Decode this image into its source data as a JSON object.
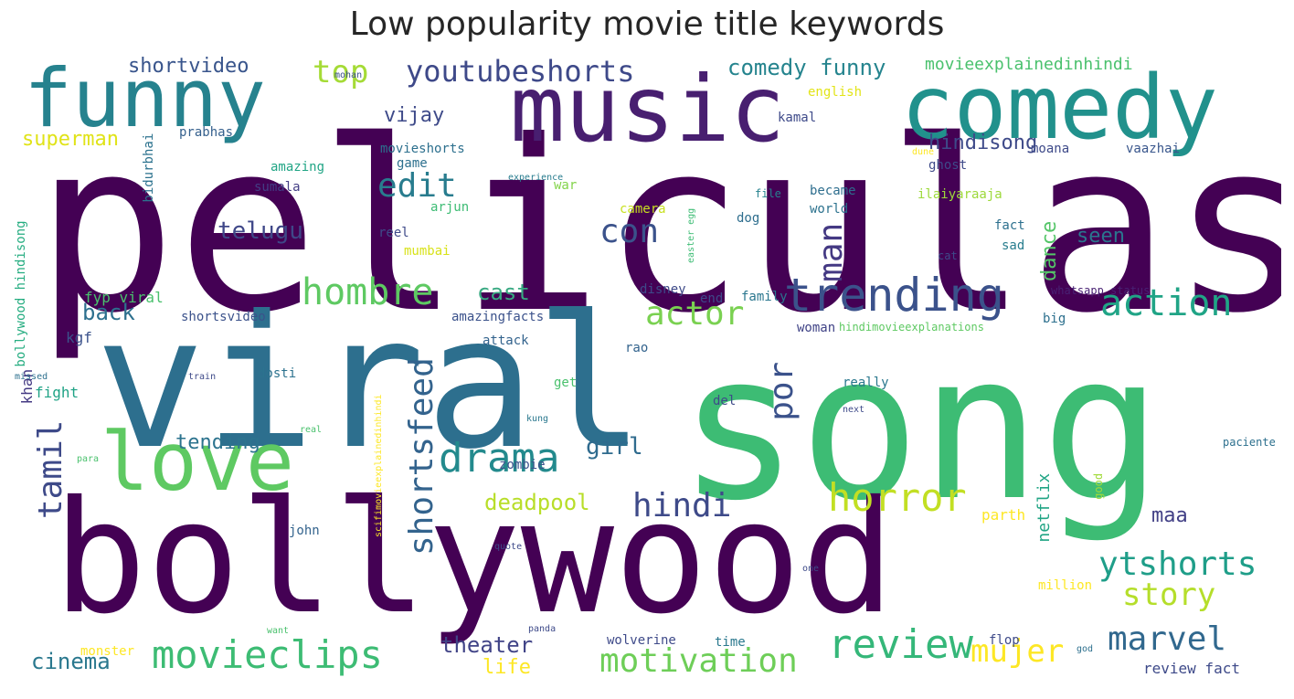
{
  "chart_data": {
    "type": "wordcloud",
    "title": "Low popularity movie title keywords",
    "words": [
      {
        "text": "peliculas",
        "color": "#440154",
        "rotate": false
      },
      {
        "text": "song",
        "color": "#3dbc74",
        "rotate": false
      },
      {
        "text": "viral",
        "color": "#2d6f8e",
        "rotate": false
      },
      {
        "text": "bollywood",
        "color": "#440154",
        "rotate": false
      },
      {
        "text": "music",
        "color": "#481f70",
        "rotate": false
      },
      {
        "text": "comedy",
        "color": "#21918c",
        "rotate": false
      },
      {
        "text": "funny",
        "color": "#26828e",
        "rotate": false
      },
      {
        "text": "love",
        "color": "#5ec962",
        "rotate": false
      },
      {
        "text": "trending",
        "color": "#3b528b",
        "rotate": false
      },
      {
        "text": "hombre",
        "color": "#5ec962",
        "rotate": false
      },
      {
        "text": "action",
        "color": "#20a486",
        "rotate": false
      },
      {
        "text": "drama",
        "color": "#238a8d",
        "rotate": false
      },
      {
        "text": "review",
        "color": "#35b779",
        "rotate": false
      },
      {
        "text": "movieclips",
        "color": "#3dbc74",
        "rotate": false
      },
      {
        "text": "horror",
        "color": "#c2df23",
        "rotate": false
      },
      {
        "text": "shortsfeed",
        "color": "#33638d",
        "rotate": true
      },
      {
        "text": "tamil",
        "color": "#3e4a89",
        "rotate": true
      },
      {
        "text": "marvel",
        "color": "#31688e",
        "rotate": false
      },
      {
        "text": "ytshorts",
        "color": "#1f9e89",
        "rotate": false
      },
      {
        "text": "motivation",
        "color": "#6ece58",
        "rotate": false
      },
      {
        "text": "actor",
        "color": "#7ad151",
        "rotate": false
      },
      {
        "text": "hindi",
        "color": "#3e4a89",
        "rotate": false
      },
      {
        "text": "youtubeshorts",
        "color": "#3e4989",
        "rotate": false
      },
      {
        "text": "top",
        "color": "#a5db36",
        "rotate": false
      },
      {
        "text": "story",
        "color": "#b5de2b",
        "rotate": false
      },
      {
        "text": "mujer",
        "color": "#fde725",
        "rotate": false
      },
      {
        "text": "edit",
        "color": "#287c8e",
        "rotate": false
      },
      {
        "text": "con",
        "color": "#3b528b",
        "rotate": false
      },
      {
        "text": "man",
        "color": "#443983",
        "rotate": true
      },
      {
        "text": "por",
        "color": "#3b528b",
        "rotate": true
      },
      {
        "text": "telugu",
        "color": "#3f4788",
        "rotate": false
      },
      {
        "text": "comedy funny",
        "color": "#25848e",
        "rotate": false
      },
      {
        "text": "cinema",
        "color": "#2a788e",
        "rotate": false
      },
      {
        "text": "theater",
        "color": "#414487",
        "rotate": false
      },
      {
        "text": "cast",
        "color": "#38a982",
        "rotate": false
      },
      {
        "text": "back",
        "color": "#2d708e",
        "rotate": false
      },
      {
        "text": "deadpool",
        "color": "#b8de29",
        "rotate": false
      },
      {
        "text": "girl",
        "color": "#2f6b8e",
        "rotate": false
      },
      {
        "text": "superman",
        "color": "#e0e318",
        "rotate": false
      },
      {
        "text": "tending",
        "color": "#2c738e",
        "rotate": false
      },
      {
        "text": "hindisong",
        "color": "#3e4a89",
        "rotate": false
      },
      {
        "text": "vijay",
        "color": "#3e4a89",
        "rotate": false
      },
      {
        "text": "seen",
        "color": "#2a768e",
        "rotate": false
      },
      {
        "text": "shortvideo",
        "color": "#39558c",
        "rotate": false
      },
      {
        "text": "dance",
        "color": "#54c568",
        "rotate": true
      },
      {
        "text": "life",
        "color": "#fde725",
        "rotate": false
      },
      {
        "text": "maa",
        "color": "#424086",
        "rotate": false
      },
      {
        "text": "movieexplainedinhindi",
        "color": "#4ac16d",
        "rotate": false
      },
      {
        "text": "netflix",
        "color": "#21a585",
        "rotate": true
      },
      {
        "text": "bollywood hindisong",
        "color": "#26ad81",
        "rotate": true
      },
      {
        "text": "fyp viral",
        "color": "#4ac16d",
        "rotate": false
      },
      {
        "text": "kgf",
        "color": "#3b528b",
        "rotate": false
      },
      {
        "text": "khan",
        "color": "#443a83",
        "rotate": true
      },
      {
        "text": "fight",
        "color": "#20a386",
        "rotate": false
      },
      {
        "text": "prabhas",
        "color": "#35608d",
        "rotate": false
      },
      {
        "text": "bidurbhai",
        "color": "#2c728e",
        "rotate": true
      },
      {
        "text": "sumala",
        "color": "#433e85",
        "rotate": false
      },
      {
        "text": "amazing",
        "color": "#21a585",
        "rotate": false
      },
      {
        "text": "movieshorts",
        "color": "#2d708e",
        "rotate": false
      },
      {
        "text": "game",
        "color": "#2d708e",
        "rotate": false
      },
      {
        "text": "war",
        "color": "#84d44b",
        "rotate": false
      },
      {
        "text": "arjun",
        "color": "#3dbc74",
        "rotate": false
      },
      {
        "text": "reel",
        "color": "#3e4a89",
        "rotate": false
      },
      {
        "text": "mumbai",
        "color": "#d8e219",
        "rotate": false
      },
      {
        "text": "camera",
        "color": "#c8e020",
        "rotate": false
      },
      {
        "text": "dog",
        "color": "#2e6e8e",
        "rotate": false
      },
      {
        "text": "became",
        "color": "#2e6e8e",
        "rotate": false
      },
      {
        "text": "world",
        "color": "#2c728e",
        "rotate": false
      },
      {
        "text": "ilaiyaraaja",
        "color": "#9dd93b",
        "rotate": false
      },
      {
        "text": "ghost",
        "color": "#3e4a89",
        "rotate": false
      },
      {
        "text": "fact",
        "color": "#2d708e",
        "rotate": false
      },
      {
        "text": "sad",
        "color": "#287d8e",
        "rotate": false
      },
      {
        "text": "moana",
        "color": "#3e4a89",
        "rotate": false
      },
      {
        "text": "vaazhai",
        "color": "#39568c",
        "rotate": false
      },
      {
        "text": "kamal",
        "color": "#3e4a89",
        "rotate": false
      },
      {
        "text": "english",
        "color": "#e2e418",
        "rotate": false
      },
      {
        "text": "mohan",
        "color": "#3b528b",
        "rotate": false
      },
      {
        "text": "dune",
        "color": "#fde725",
        "rotate": false
      },
      {
        "text": "experience",
        "color": "#287c8e",
        "rotate": false
      },
      {
        "text": "easter egg",
        "color": "#3dbc74",
        "rotate": true
      },
      {
        "text": "file",
        "color": "#26828e",
        "rotate": false
      },
      {
        "text": "cat",
        "color": "#3e4a89",
        "rotate": false
      },
      {
        "text": "disney",
        "color": "#3e4a89",
        "rotate": false
      },
      {
        "text": "end",
        "color": "#3e4a89",
        "rotate": false
      },
      {
        "text": "family",
        "color": "#2a768e",
        "rotate": false
      },
      {
        "text": "whatsapp status",
        "color": "#482173",
        "rotate": false
      },
      {
        "text": "woman",
        "color": "#414487",
        "rotate": false
      },
      {
        "text": "hindimovieexplanations",
        "color": "#5ec962",
        "rotate": false
      },
      {
        "text": "big",
        "color": "#2d708e",
        "rotate": false
      },
      {
        "text": "amazingfacts",
        "color": "#3b528b",
        "rotate": false
      },
      {
        "text": "shortsvideo",
        "color": "#3b528b",
        "rotate": false
      },
      {
        "text": "attack",
        "color": "#33638d",
        "rotate": false
      },
      {
        "text": "rao",
        "color": "#33638d",
        "rotate": false
      },
      {
        "text": "dosti",
        "color": "#2c728e",
        "rotate": false
      },
      {
        "text": "scifimovieexplainedinhindi",
        "color": "#fde725",
        "rotate": true
      },
      {
        "text": "get",
        "color": "#4ac16d",
        "rotate": false
      },
      {
        "text": "del",
        "color": "#3e4a89",
        "rotate": false
      },
      {
        "text": "really",
        "color": "#2a788e",
        "rotate": false
      },
      {
        "text": "next",
        "color": "#3e4a89",
        "rotate": false
      },
      {
        "text": "kung",
        "color": "#2a788e",
        "rotate": false
      },
      {
        "text": "real",
        "color": "#4ac16d",
        "rotate": false
      },
      {
        "text": "train",
        "color": "#3e4a89",
        "rotate": false
      },
      {
        "text": "missed",
        "color": "#2d708e",
        "rotate": false
      },
      {
        "text": "para",
        "color": "#4ac16d",
        "rotate": false
      },
      {
        "text": "zombie",
        "color": "#3b528b",
        "rotate": false
      },
      {
        "text": "good",
        "color": "#a0da39",
        "rotate": true
      },
      {
        "text": "paciente",
        "color": "#2d708e",
        "rotate": false
      },
      {
        "text": "parth",
        "color": "#fde725",
        "rotate": false
      },
      {
        "text": "john",
        "color": "#33638d",
        "rotate": false
      },
      {
        "text": "quote",
        "color": "#3e4a89",
        "rotate": false
      },
      {
        "text": "one",
        "color": "#3e4a89",
        "rotate": false
      },
      {
        "text": "million",
        "color": "#fde725",
        "rotate": false
      },
      {
        "text": "want",
        "color": "#4ac16d",
        "rotate": false
      },
      {
        "text": "panda",
        "color": "#3e4a89",
        "rotate": false
      },
      {
        "text": "monster",
        "color": "#fde725",
        "rotate": false
      },
      {
        "text": "wolverine",
        "color": "#3e4a89",
        "rotate": false
      },
      {
        "text": "time",
        "color": "#2a788e",
        "rotate": false
      },
      {
        "text": "flop",
        "color": "#3e4a89",
        "rotate": false
      },
      {
        "text": "god",
        "color": "#2d708e",
        "rotate": false
      },
      {
        "text": "review fact",
        "color": "#3e4a89",
        "rotate": false
      }
    ]
  }
}
